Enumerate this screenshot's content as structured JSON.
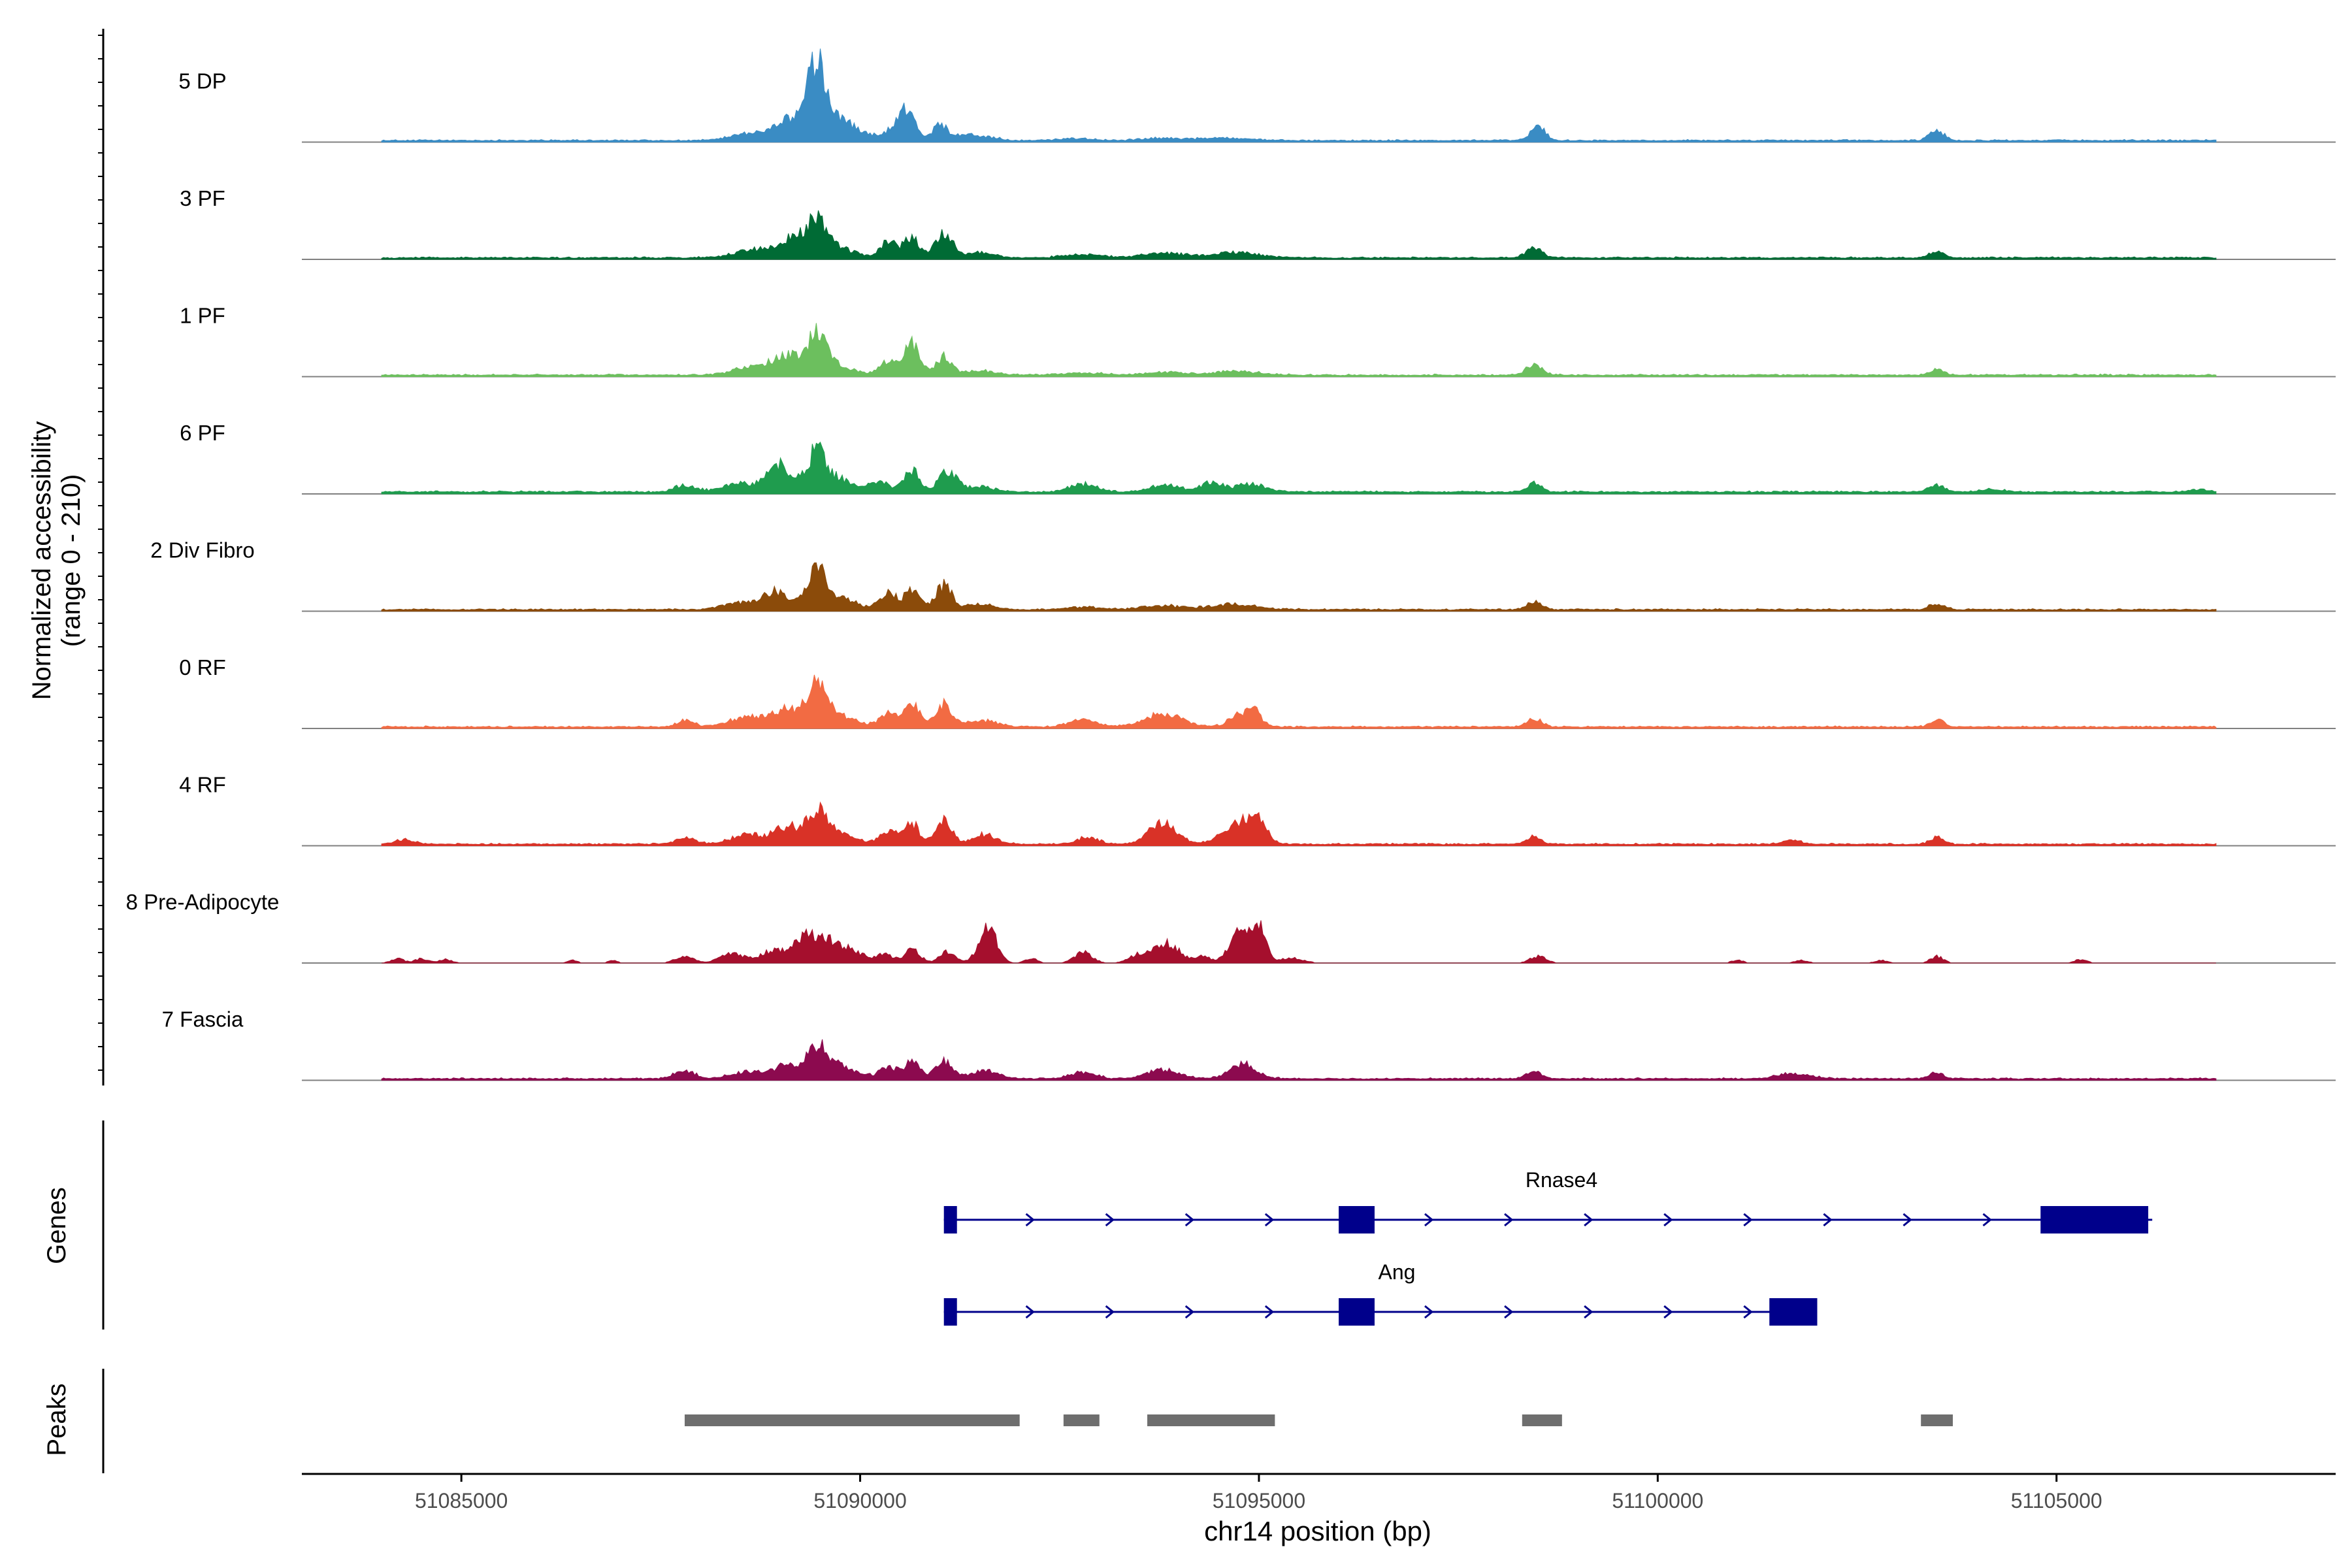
{
  "chart_data": {
    "type": "area",
    "title": "",
    "ylabel_line1": "Normalized accessibility",
    "ylabel_line2": "(range 0 - 210)",
    "ylim": [
      0,
      210
    ],
    "xlabel": "chr14 position (bp)",
    "xlim": [
      51083000,
      51108500
    ],
    "xticks": [
      51085000,
      51090000,
      51095000,
      51100000,
      51105000
    ],
    "xtick_labels": [
      "51085000",
      "51090000",
      "51095000",
      "51100000",
      "51105000"
    ],
    "tracks": [
      {
        "name": "5 DP",
        "color": "#3a8cc4",
        "start": 51084000,
        "end": 51107000,
        "background": [
          3,
          2
        ],
        "peaks": [
          [
            51088500,
            12,
            180
          ],
          [
            51088900,
            14,
            250
          ],
          [
            51089250,
            50,
            220
          ],
          [
            51089450,
            140,
            95
          ],
          [
            51089700,
            55,
            160
          ],
          [
            51090050,
            15,
            140
          ],
          [
            51090450,
            30,
            120
          ],
          [
            51090600,
            60,
            90
          ],
          [
            51091000,
            38,
            90
          ],
          [
            51091300,
            12,
            120
          ],
          [
            51091600,
            8,
            150
          ],
          [
            51092700,
            5,
            200
          ],
          [
            51093800,
            5,
            250
          ],
          [
            51094600,
            6,
            300
          ],
          [
            51098500,
            32,
            90
          ],
          [
            51103500,
            22,
            90
          ]
        ]
      },
      {
        "name": "3 PF",
        "color": "#006b35",
        "start": 51084000,
        "end": 51107000,
        "background": [
          3,
          2
        ],
        "peaks": [
          [
            51088700,
            18,
            260
          ],
          [
            51089150,
            42,
            160
          ],
          [
            51089450,
            72,
            110
          ],
          [
            51089650,
            28,
            220
          ],
          [
            51090350,
            38,
            100
          ],
          [
            51090650,
            45,
            100
          ],
          [
            51091050,
            60,
            100
          ],
          [
            51091500,
            12,
            180
          ],
          [
            51092800,
            7,
            240
          ],
          [
            51093800,
            10,
            260
          ],
          [
            51094700,
            12,
            300
          ],
          [
            51098450,
            22,
            100
          ],
          [
            51103500,
            16,
            90
          ]
        ]
      },
      {
        "name": "1 PF",
        "color": "#6cbf5e",
        "start": 51084000,
        "end": 51107000,
        "background": [
          3,
          2
        ],
        "peaks": [
          [
            51088700,
            20,
            250
          ],
          [
            51089100,
            38,
            170
          ],
          [
            51089450,
            75,
            110
          ],
          [
            51089650,
            25,
            220
          ],
          [
            51090350,
            30,
            100
          ],
          [
            51090650,
            70,
            100
          ],
          [
            51091050,
            40,
            100
          ],
          [
            51091500,
            10,
            180
          ],
          [
            51092800,
            5,
            240
          ],
          [
            51093800,
            6,
            260
          ],
          [
            51094700,
            8,
            300
          ],
          [
            51098450,
            24,
            100
          ],
          [
            51103500,
            12,
            90
          ]
        ]
      },
      {
        "name": "6 PF",
        "color": "#1f9c4e",
        "start": 51084000,
        "end": 51107000,
        "background": [
          4,
          2
        ],
        "peaks": [
          [
            51087800,
            15,
            130
          ],
          [
            51088500,
            20,
            220
          ],
          [
            51089000,
            60,
            150
          ],
          [
            51089450,
            80,
            110
          ],
          [
            51089700,
            30,
            220
          ],
          [
            51090250,
            25,
            110
          ],
          [
            51090650,
            50,
            100
          ],
          [
            51091100,
            45,
            110
          ],
          [
            51091500,
            12,
            180
          ],
          [
            51092800,
            18,
            160
          ],
          [
            51093800,
            15,
            180
          ],
          [
            51094400,
            20,
            160
          ],
          [
            51094900,
            18,
            160
          ],
          [
            51098450,
            20,
            90
          ],
          [
            51103500,
            16,
            90
          ],
          [
            51104200,
            6,
            150
          ],
          [
            51106800,
            5,
            120
          ]
        ]
      },
      {
        "name": "2 Div Fibro",
        "color": "#8b4b0a",
        "start": 51084000,
        "end": 51107000,
        "background": [
          3,
          2
        ],
        "peaks": [
          [
            51088500,
            14,
            220
          ],
          [
            51088950,
            40,
            160
          ],
          [
            51089450,
            85,
            110
          ],
          [
            51089700,
            28,
            220
          ],
          [
            51090350,
            40,
            100
          ],
          [
            51090650,
            42,
            100
          ],
          [
            51091050,
            55,
            100
          ],
          [
            51091500,
            12,
            180
          ],
          [
            51092800,
            6,
            220
          ],
          [
            51093800,
            8,
            260
          ],
          [
            51094700,
            12,
            300
          ],
          [
            51098450,
            20,
            90
          ],
          [
            51103500,
            14,
            90
          ]
        ]
      },
      {
        "name": "0 RF",
        "color": "#f26b43",
        "start": 51084000,
        "end": 51107000,
        "background": [
          3,
          2
        ],
        "peaks": [
          [
            51087800,
            14,
            110
          ],
          [
            51088600,
            22,
            240
          ],
          [
            51089100,
            40,
            170
          ],
          [
            51089450,
            82,
            110
          ],
          [
            51089700,
            30,
            220
          ],
          [
            51090350,
            28,
            110
          ],
          [
            51090650,
            50,
            100
          ],
          [
            51091050,
            50,
            100
          ],
          [
            51091500,
            15,
            200
          ],
          [
            51092800,
            18,
            160
          ],
          [
            51093800,
            30,
            230
          ],
          [
            51094800,
            30,
            150
          ],
          [
            51094950,
            22,
            80
          ],
          [
            51098450,
            18,
            90
          ],
          [
            51103500,
            18,
            80
          ]
        ]
      },
      {
        "name": "4 RF",
        "color": "#d93227",
        "start": 51084000,
        "end": 51107000,
        "background": [
          3,
          2
        ],
        "peaks": [
          [
            51084300,
            10,
            120
          ],
          [
            51087800,
            14,
            130
          ],
          [
            51088600,
            22,
            220
          ],
          [
            51089100,
            40,
            150
          ],
          [
            51089450,
            65,
            110
          ],
          [
            51089700,
            28,
            200
          ],
          [
            51090350,
            30,
            110
          ],
          [
            51090650,
            48,
            90
          ],
          [
            51091050,
            52,
            100
          ],
          [
            51091550,
            22,
            150
          ],
          [
            51092850,
            16,
            140
          ],
          [
            51093800,
            50,
            170
          ],
          [
            51094750,
            50,
            200
          ],
          [
            51095000,
            38,
            110
          ],
          [
            51098450,
            18,
            90
          ],
          [
            51101700,
            8,
            120
          ],
          [
            51103500,
            16,
            80
          ]
        ]
      },
      {
        "name": "8 Pre-Adipocyte",
        "color": "#a50f2d",
        "start": 51084000,
        "end": 51107000,
        "background": [
          0,
          0
        ],
        "peaks": [
          [
            51084200,
            10,
            80
          ],
          [
            51084500,
            10,
            80
          ],
          [
            51084800,
            8,
            80
          ],
          [
            51086400,
            6,
            60
          ],
          [
            51086900,
            6,
            60
          ],
          [
            51087800,
            14,
            120
          ],
          [
            51088400,
            22,
            150
          ],
          [
            51088900,
            28,
            150
          ],
          [
            51089300,
            60,
            140
          ],
          [
            51089600,
            45,
            140
          ],
          [
            51089900,
            28,
            150
          ],
          [
            51090300,
            22,
            100
          ],
          [
            51090650,
            30,
            100
          ],
          [
            51091100,
            25,
            100
          ],
          [
            51091600,
            80,
            110
          ],
          [
            51092150,
            10,
            80
          ],
          [
            51092800,
            25,
            110
          ],
          [
            51093500,
            20,
            120
          ],
          [
            51093850,
            45,
            150
          ],
          [
            51094300,
            15,
            100
          ],
          [
            51094750,
            70,
            120
          ],
          [
            51095000,
            90,
            80
          ],
          [
            51095400,
            12,
            150
          ],
          [
            51098500,
            15,
            100
          ],
          [
            51101000,
            6,
            80
          ],
          [
            51101800,
            6,
            80
          ],
          [
            51102800,
            6,
            80
          ],
          [
            51103500,
            15,
            80
          ],
          [
            51105300,
            8,
            80
          ]
        ]
      },
      {
        "name": "7 Fascia",
        "color": "#8c0a4f",
        "start": 51084000,
        "end": 51107000,
        "background": [
          3,
          2
        ],
        "peaks": [
          [
            51087800,
            18,
            130
          ],
          [
            51088600,
            15,
            220
          ],
          [
            51089100,
            30,
            160
          ],
          [
            51089450,
            62,
            120
          ],
          [
            51089700,
            30,
            220
          ],
          [
            51090350,
            26,
            110
          ],
          [
            51090650,
            36,
            100
          ],
          [
            51091050,
            38,
            110
          ],
          [
            51091550,
            18,
            180
          ],
          [
            51092800,
            14,
            160
          ],
          [
            51093800,
            20,
            200
          ],
          [
            51094800,
            34,
            170
          ],
          [
            51098450,
            16,
            90
          ],
          [
            51101700,
            12,
            200
          ],
          [
            51103500,
            14,
            90
          ]
        ]
      }
    ],
    "genes_label": "Genes",
    "genes": [
      {
        "name": "Rnase4",
        "start": 51091050,
        "end": 51106200,
        "strand": "+",
        "exons": [
          [
            51091050,
            51091200
          ],
          [
            51096000,
            51096450
          ],
          [
            51104800,
            51106150
          ]
        ]
      },
      {
        "name": "Ang",
        "start": 51091050,
        "end": 51102000,
        "strand": "+",
        "exons": [
          [
            51091050,
            51091200
          ],
          [
            51096000,
            51096450
          ],
          [
            51101400,
            51102000
          ]
        ]
      }
    ],
    "peaks_label": "Peaks",
    "peak_regions": [
      [
        51087800,
        51092000
      ],
      [
        51092550,
        51093000
      ],
      [
        51093600,
        51095200
      ],
      [
        51098300,
        51098800
      ],
      [
        51103300,
        51103700
      ]
    ]
  }
}
